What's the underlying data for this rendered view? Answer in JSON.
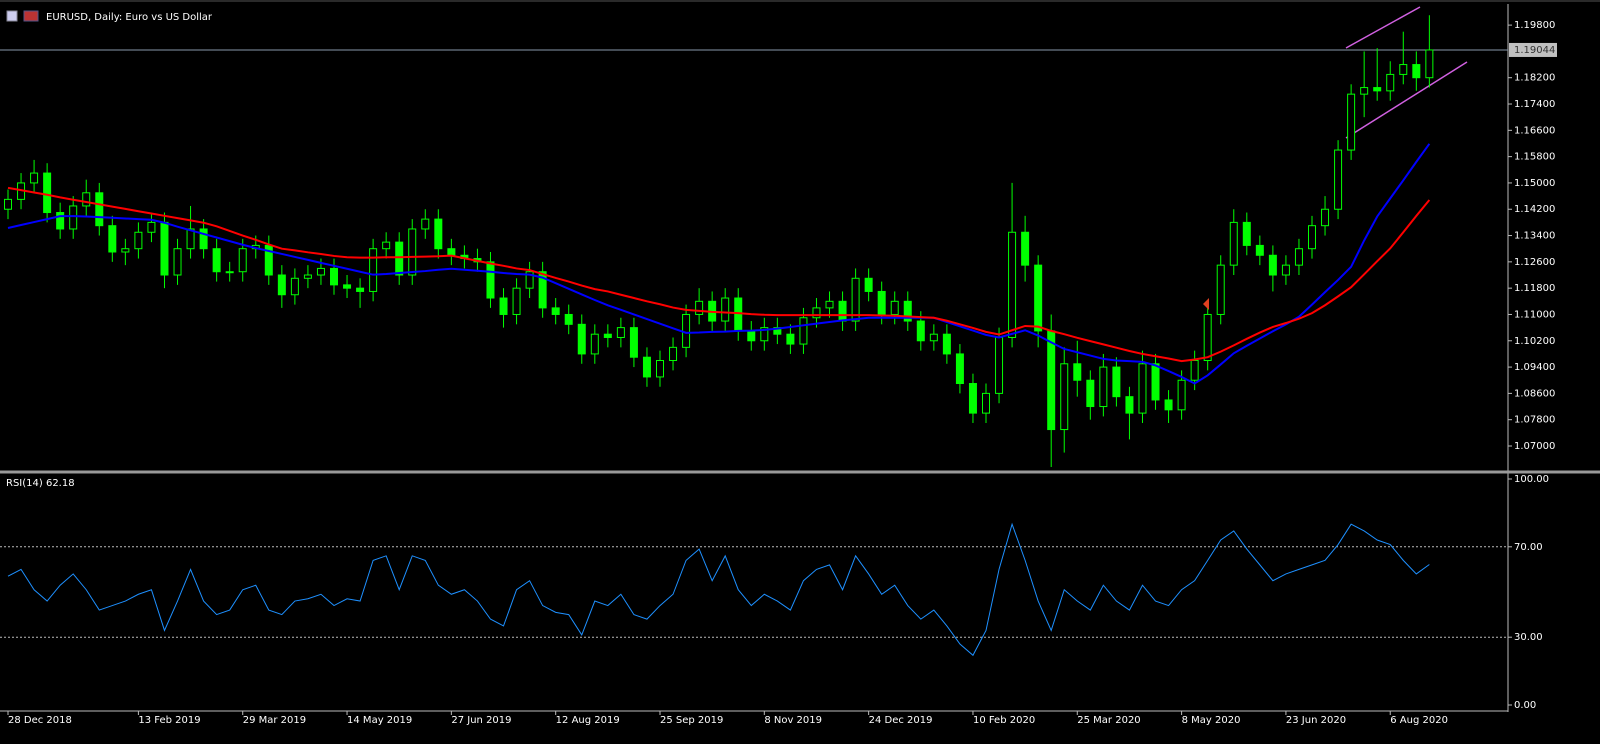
{
  "chart_data": [
    {
      "type": "candlestick",
      "title": "EURUSD, Daily:  Euro vs US Dollar",
      "categories": [
        "28 Dec 2018",
        null,
        null,
        null,
        null,
        null,
        null,
        null,
        null,
        null,
        "13 Feb 2019",
        null,
        null,
        null,
        null,
        null,
        null,
        null,
        "29 Mar 2019",
        null,
        null,
        null,
        null,
        null,
        null,
        null,
        "14 May 2019",
        null,
        null,
        null,
        null,
        null,
        null,
        null,
        "27 Jun 2019",
        null,
        null,
        null,
        null,
        null,
        null,
        null,
        "12 Aug 2019",
        null,
        null,
        null,
        null,
        null,
        null,
        null,
        "25 Sep 2019",
        null,
        null,
        null,
        null,
        null,
        null,
        null,
        "8 Nov 2019",
        null,
        null,
        null,
        null,
        null,
        null,
        null,
        "24 Dec 2019",
        null,
        null,
        null,
        null,
        null,
        null,
        null,
        "10 Feb 2020",
        null,
        null,
        null,
        null,
        null,
        null,
        null,
        "25 Mar 2020",
        null,
        null,
        null,
        null,
        null,
        null,
        null,
        "8 May 2020",
        null,
        null,
        null,
        null,
        null,
        null,
        null,
        "23 Jun 2020",
        null,
        null,
        null,
        null,
        null,
        null,
        null,
        "6 Aug 2020",
        null,
        null,
        null
      ],
      "open": [
        1.142,
        1.145,
        1.15,
        1.153,
        1.141,
        1.136,
        1.143,
        1.147,
        1.137,
        1.129,
        1.13,
        1.135,
        1.138,
        1.122,
        1.13,
        1.136,
        1.13,
        1.123,
        1.123,
        1.13,
        1.131,
        1.122,
        1.116,
        1.121,
        1.122,
        1.124,
        1.119,
        1.118,
        1.117,
        1.13,
        1.132,
        1.122,
        1.136,
        1.139,
        1.13,
        1.128,
        1.127,
        1.126,
        1.115,
        1.11,
        1.118,
        1.123,
        1.112,
        1.11,
        1.107,
        1.098,
        1.104,
        1.103,
        1.106,
        1.097,
        1.091,
        1.096,
        1.1,
        1.11,
        1.114,
        1.108,
        1.115,
        1.105,
        1.102,
        1.106,
        1.104,
        1.101,
        1.109,
        1.112,
        1.114,
        1.108,
        1.121,
        1.117,
        1.11,
        1.114,
        1.108,
        1.102,
        1.104,
        1.098,
        1.089,
        1.08,
        1.086,
        1.103,
        1.135,
        1.125,
        1.105,
        1.075,
        1.095,
        1.09,
        1.082,
        1.094,
        1.085,
        1.08,
        1.095,
        1.084,
        1.081,
        1.09,
        1.096,
        1.11,
        1.125,
        1.138,
        1.131,
        1.128,
        1.122,
        1.125,
        1.13,
        1.137,
        1.142,
        1.16,
        1.177,
        1.179,
        1.178,
        1.183,
        1.186,
        1.182
      ],
      "high": [
        1.148,
        1.153,
        1.157,
        1.156,
        1.144,
        1.146,
        1.151,
        1.15,
        1.14,
        1.133,
        1.138,
        1.141,
        1.141,
        1.133,
        1.143,
        1.139,
        1.133,
        1.126,
        1.133,
        1.134,
        1.134,
        1.125,
        1.124,
        1.125,
        1.127,
        1.127,
        1.122,
        1.121,
        1.133,
        1.135,
        1.135,
        1.139,
        1.142,
        1.142,
        1.133,
        1.131,
        1.13,
        1.129,
        1.118,
        1.121,
        1.126,
        1.126,
        1.115,
        1.113,
        1.11,
        1.107,
        1.107,
        1.109,
        1.109,
        1.1,
        1.099,
        1.103,
        1.113,
        1.118,
        1.117,
        1.118,
        1.118,
        1.108,
        1.109,
        1.109,
        1.107,
        1.112,
        1.115,
        1.117,
        1.117,
        1.124,
        1.124,
        1.12,
        1.117,
        1.117,
        1.111,
        1.107,
        1.107,
        1.101,
        1.092,
        1.089,
        1.106,
        1.15,
        1.14,
        1.128,
        1.11,
        1.1,
        1.102,
        1.093,
        1.098,
        1.097,
        1.088,
        1.099,
        1.098,
        1.087,
        1.093,
        1.099,
        1.114,
        1.128,
        1.142,
        1.141,
        1.134,
        1.131,
        1.128,
        1.133,
        1.14,
        1.146,
        1.163,
        1.18,
        1.19,
        1.191,
        1.187,
        1.196,
        1.19,
        1.201
      ],
      "low": [
        1.139,
        1.142,
        1.147,
        1.138,
        1.133,
        1.133,
        1.14,
        1.134,
        1.126,
        1.125,
        1.127,
        1.132,
        1.118,
        1.119,
        1.127,
        1.127,
        1.12,
        1.12,
        1.12,
        1.127,
        1.119,
        1.112,
        1.113,
        1.118,
        1.119,
        1.116,
        1.115,
        1.112,
        1.114,
        1.127,
        1.119,
        1.119,
        1.133,
        1.127,
        1.125,
        1.124,
        1.123,
        1.112,
        1.106,
        1.107,
        1.115,
        1.109,
        1.107,
        1.104,
        1.095,
        1.095,
        1.1,
        1.1,
        1.094,
        1.088,
        1.088,
        1.093,
        1.097,
        1.107,
        1.105,
        1.105,
        1.102,
        1.099,
        1.099,
        1.101,
        1.098,
        1.098,
        1.106,
        1.109,
        1.105,
        1.105,
        1.114,
        1.107,
        1.107,
        1.105,
        1.099,
        1.099,
        1.095,
        1.086,
        1.077,
        1.077,
        1.083,
        1.1,
        1.12,
        1.1,
        1.0636,
        1.068,
        1.085,
        1.078,
        1.079,
        1.082,
        1.072,
        1.077,
        1.081,
        1.077,
        1.078,
        1.087,
        1.093,
        1.107,
        1.122,
        1.128,
        1.125,
        1.117,
        1.119,
        1.122,
        1.127,
        1.134,
        1.139,
        1.157,
        1.17,
        1.175,
        1.175,
        1.18,
        1.178,
        1.179
      ],
      "close": [
        1.145,
        1.15,
        1.153,
        1.141,
        1.136,
        1.143,
        1.147,
        1.137,
        1.129,
        1.13,
        1.135,
        1.138,
        1.122,
        1.13,
        1.136,
        1.13,
        1.123,
        1.123,
        1.13,
        1.131,
        1.122,
        1.116,
        1.121,
        1.122,
        1.124,
        1.119,
        1.118,
        1.117,
        1.13,
        1.132,
        1.122,
        1.136,
        1.139,
        1.13,
        1.128,
        1.127,
        1.126,
        1.115,
        1.11,
        1.118,
        1.123,
        1.112,
        1.11,
        1.107,
        1.098,
        1.104,
        1.103,
        1.106,
        1.097,
        1.091,
        1.096,
        1.1,
        1.11,
        1.114,
        1.108,
        1.115,
        1.105,
        1.102,
        1.106,
        1.104,
        1.101,
        1.109,
        1.112,
        1.114,
        1.108,
        1.121,
        1.117,
        1.11,
        1.114,
        1.108,
        1.102,
        1.104,
        1.098,
        1.089,
        1.08,
        1.086,
        1.103,
        1.135,
        1.125,
        1.105,
        1.075,
        1.095,
        1.09,
        1.082,
        1.094,
        1.085,
        1.08,
        1.095,
        1.084,
        1.081,
        1.09,
        1.096,
        1.11,
        1.125,
        1.138,
        1.131,
        1.128,
        1.122,
        1.125,
        1.13,
        1.137,
        1.142,
        1.16,
        1.177,
        1.179,
        1.178,
        1.183,
        1.186,
        1.182,
        1.19044
      ],
      "color": "#00ff00",
      "overlays": [
        {
          "color": "#0000ff",
          "values": [
            1.1363,
            1.1372,
            1.1381,
            1.139,
            1.1399,
            1.1399,
            1.1398,
            1.1396,
            1.1394,
            1.1392,
            1.139,
            1.1388,
            1.1379,
            1.1367,
            1.1356,
            1.1345,
            1.1334,
            1.1323,
            1.1312,
            1.1302,
            1.1293,
            1.1284,
            1.1275,
            1.1266,
            1.1257,
            1.1248,
            1.1239,
            1.123,
            1.1221,
            1.1223,
            1.1226,
            1.1229,
            1.1232,
            1.1236,
            1.1239,
            1.1236,
            1.1233,
            1.123,
            1.1226,
            1.1223,
            1.1221,
            1.1212,
            1.1195,
            1.1178,
            1.1161,
            1.1144,
            1.1128,
            1.1114,
            1.11,
            1.1086,
            1.1072,
            1.1058,
            1.1044,
            1.1045,
            1.1047,
            1.1048,
            1.105,
            1.1051,
            1.1053,
            1.1057,
            1.1062,
            1.1067,
            1.1072,
            1.1077,
            1.1082,
            1.1086,
            1.109,
            1.109,
            1.109,
            1.109,
            1.109,
            1.109,
            1.1077,
            1.1064,
            1.1051,
            1.1038,
            1.103,
            1.1041,
            1.1052,
            1.1036,
            1.1015,
            1.0995,
            1.0985,
            1.0975,
            1.0965,
            1.096,
            1.0958,
            1.0956,
            1.0945,
            1.0928,
            1.091,
            1.089,
            1.0915,
            1.0948,
            1.0982,
            1.1005,
            1.1027,
            1.1049,
            1.107,
            1.1093,
            1.113,
            1.1168,
            1.1205,
            1.1245,
            1.1325,
            1.1398,
            1.1453,
            1.1508,
            1.1564,
            1.1619
          ]
        },
        {
          "color": "#ff0000",
          "values": [
            1.1485,
            1.1478,
            1.1471,
            1.1464,
            1.1456,
            1.1449,
            1.1442,
            1.1435,
            1.1428,
            1.1421,
            1.1414,
            1.1407,
            1.14,
            1.1393,
            1.1386,
            1.1379,
            1.1368,
            1.1354,
            1.134,
            1.1327,
            1.1313,
            1.13,
            1.1295,
            1.1289,
            1.1284,
            1.1278,
            1.1274,
            1.1273,
            1.1273,
            1.1274,
            1.1274,
            1.1275,
            1.1276,
            1.1277,
            1.1279,
            1.1271,
            1.1263,
            1.1255,
            1.1248,
            1.124,
            1.1235,
            1.1223,
            1.1211,
            1.12,
            1.1188,
            1.1177,
            1.117,
            1.116,
            1.115,
            1.114,
            1.1131,
            1.1121,
            1.1114,
            1.1111,
            1.1108,
            1.1106,
            1.1104,
            1.1101,
            1.1099,
            1.1098,
            1.1098,
            1.1098,
            1.1098,
            1.1098,
            1.1098,
            1.1098,
            1.1098,
            1.1097,
            1.1096,
            1.1094,
            1.1092,
            1.109,
            1.1081,
            1.107,
            1.1059,
            1.1047,
            1.1039,
            1.1052,
            1.1065,
            1.1063,
            1.105,
            1.104,
            1.1029,
            1.1019,
            1.1009,
            1.0999,
            1.0989,
            1.098,
            1.0973,
            1.0966,
            1.0958,
            1.0963,
            1.097,
            1.0987,
            1.1006,
            1.1026,
            1.1045,
            1.1062,
            1.1074,
            1.1087,
            1.1104,
            1.1128,
            1.1155,
            1.1183,
            1.1222,
            1.1262,
            1.1301,
            1.135,
            1.14,
            1.1448
          ]
        }
      ],
      "current_price": 1.19044,
      "ylim": [
        1.0627,
        1.2032
      ],
      "yticks": [
        {
          "value": 1.198,
          "label": "1.19800"
        },
        {
          "value": 1.182,
          "label": "1.18200"
        },
        {
          "value": 1.174,
          "label": "1.17400"
        },
        {
          "value": 1.166,
          "label": "1.16600"
        },
        {
          "value": 1.158,
          "label": "1.15800"
        },
        {
          "value": 1.15,
          "label": "1.15000"
        },
        {
          "value": 1.142,
          "label": "1.14200"
        },
        {
          "value": 1.134,
          "label": "1.13400"
        },
        {
          "value": 1.126,
          "label": "1.12600"
        },
        {
          "value": 1.118,
          "label": "1.11800"
        },
        {
          "value": 1.11,
          "label": "1.11000"
        },
        {
          "value": 1.102,
          "label": "1.10200"
        },
        {
          "value": 1.094,
          "label": "1.09400"
        },
        {
          "value": 1.086,
          "label": "1.08600"
        },
        {
          "value": 1.078,
          "label": "1.07800"
        },
        {
          "value": 1.07,
          "label": "1.07000"
        }
      ]
    },
    {
      "type": "line",
      "title": "RSI(14) 62.18",
      "color": "#1e90ff",
      "values": [
        57,
        60,
        51,
        46,
        53,
        58,
        51,
        42,
        44,
        46,
        49,
        51,
        33,
        46,
        60,
        46,
        40,
        42,
        51,
        53,
        42,
        40,
        46,
        47,
        49,
        44,
        47,
        46,
        64,
        66,
        51,
        66,
        64,
        53,
        49,
        51,
        46,
        38,
        35,
        51,
        55,
        44,
        41,
        40,
        31,
        46,
        44,
        49,
        40,
        38,
        44,
        49,
        64,
        69,
        55,
        66,
        51,
        44,
        49,
        46,
        42,
        55,
        60,
        62,
        51,
        66,
        58,
        49,
        53,
        44,
        38,
        42,
        35,
        27,
        22,
        33,
        60,
        80,
        64,
        46,
        33,
        51,
        46,
        42,
        53,
        46,
        42,
        53,
        46,
        44,
        51,
        55,
        64,
        73,
        77,
        69,
        62,
        55,
        58,
        60,
        62,
        64,
        71,
        80,
        77,
        73,
        71,
        64,
        58,
        62.18
      ],
      "ylim": [
        0,
        100
      ],
      "yticks": [
        {
          "value": 100,
          "label": "100.00"
        },
        {
          "value": 70,
          "label": "70.00"
        },
        {
          "value": 30,
          "label": "30.00"
        },
        {
          "value": 0,
          "label": "0.00"
        }
      ],
      "dotted_levels": [
        70,
        30
      ]
    }
  ]
}
